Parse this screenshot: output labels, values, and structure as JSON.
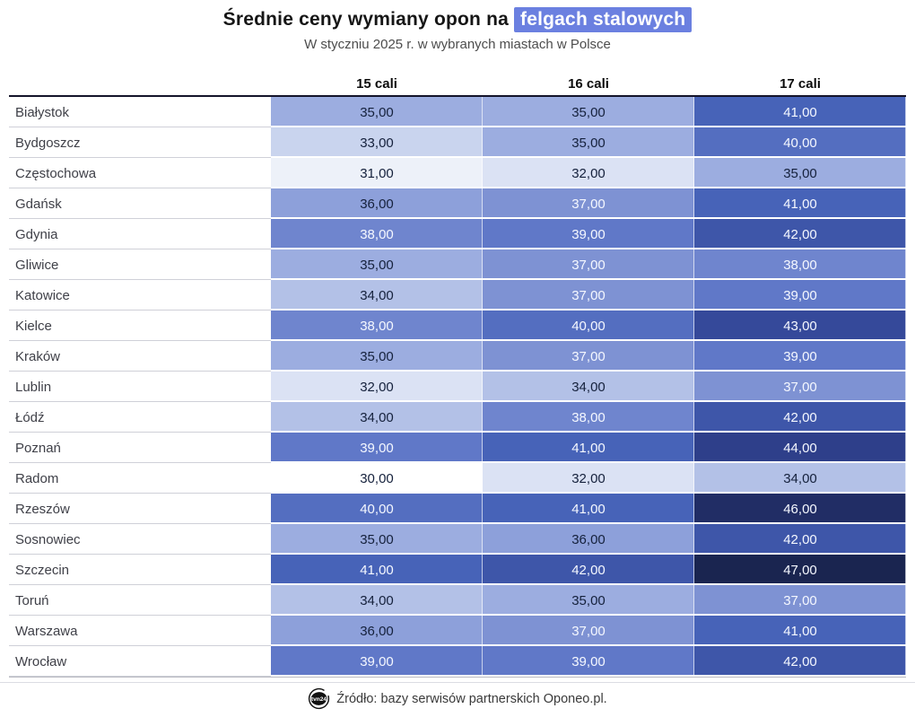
{
  "title": {
    "prefix": "Średnie ceny wymiany opon na ",
    "highlight": "felgach stalowych"
  },
  "subtitle": "W styczniu 2025 r. w wybranych miastach w Polsce",
  "source": {
    "label": "Źródło: bazy serwisów partnerskich Oponeo.pl.",
    "logo_text": "tvn24"
  },
  "colors": {
    "highlight_bg": "#6b80e0",
    "highlight_text": "#ffffff",
    "cell_dark_text": "#15213c",
    "cell_light_text": "#f5f8ff",
    "top_border": "#14142a",
    "label_text": "#3f4048"
  },
  "chart_data": {
    "type": "heatmap",
    "title": "Średnie ceny wymiany opon na felgach stalowych",
    "subtitle": "W styczniu 2025 r. w wybranych miastach w Polsce",
    "columns": [
      "15 cali",
      "16 cali",
      "17 cali"
    ],
    "rows": [
      {
        "city": "Białystok",
        "values": [
          35,
          35,
          41
        ]
      },
      {
        "city": "Bydgoszcz",
        "values": [
          33,
          35,
          40
        ]
      },
      {
        "city": "Częstochowa",
        "values": [
          31,
          32,
          35
        ]
      },
      {
        "city": "Gdańsk",
        "values": [
          36,
          37,
          41
        ]
      },
      {
        "city": "Gdynia",
        "values": [
          38,
          39,
          42
        ]
      },
      {
        "city": "Gliwice",
        "values": [
          35,
          37,
          38
        ]
      },
      {
        "city": "Katowice",
        "values": [
          34,
          37,
          39
        ]
      },
      {
        "city": "Kielce",
        "values": [
          38,
          40,
          43
        ]
      },
      {
        "city": "Kraków",
        "values": [
          35,
          37,
          39
        ]
      },
      {
        "city": "Lublin",
        "values": [
          32,
          34,
          37
        ]
      },
      {
        "city": "Łódź",
        "values": [
          34,
          38,
          42
        ]
      },
      {
        "city": "Poznań",
        "values": [
          39,
          41,
          44
        ]
      },
      {
        "city": "Radom",
        "values": [
          30,
          32,
          34
        ]
      },
      {
        "city": "Rzeszów",
        "values": [
          40,
          41,
          46
        ]
      },
      {
        "city": "Sosnowiec",
        "values": [
          35,
          36,
          42
        ]
      },
      {
        "city": "Szczecin",
        "values": [
          41,
          42,
          47
        ]
      },
      {
        "city": "Toruń",
        "values": [
          34,
          35,
          37
        ]
      },
      {
        "city": "Warszawa",
        "values": [
          36,
          37,
          41
        ]
      },
      {
        "city": "Wrocław",
        "values": [
          39,
          39,
          42
        ]
      }
    ],
    "value_format": "comma-decimal-2",
    "value_range": [
      30,
      47
    ],
    "color_scale": {
      "stops": [
        {
          "value": 30,
          "color": "#ffffff"
        },
        {
          "value": 33,
          "color": "#c9d4ee"
        },
        {
          "value": 35,
          "color": "#9cade0"
        },
        {
          "value": 37,
          "color": "#7e92d3"
        },
        {
          "value": 39,
          "color": "#6078c8"
        },
        {
          "value": 41,
          "color": "#4763b8"
        },
        {
          "value": 43,
          "color": "#35499a"
        },
        {
          "value": 45,
          "color": "#27357a"
        },
        {
          "value": 47,
          "color": "#1a2550"
        }
      ],
      "light_text_threshold": 37
    },
    "legend_position": "none",
    "grid": false
  }
}
